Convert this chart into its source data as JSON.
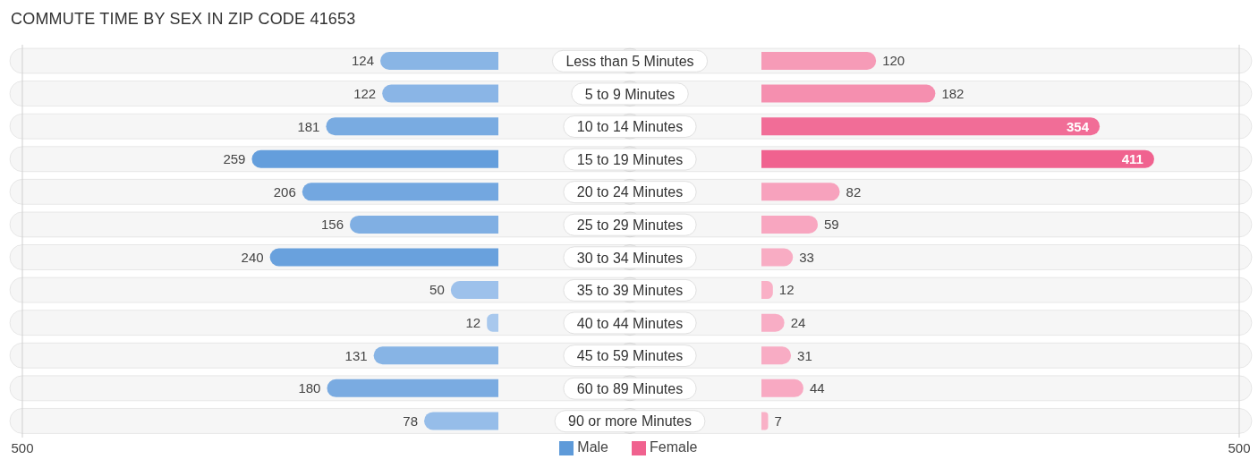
{
  "chart_data": [
    {
      "type": "bar",
      "orientation": "horizontal",
      "title": "COMMUTE TIME BY SEX IN ZIP CODE 41653",
      "categories": [
        "Less than 5 Minutes",
        "5 to 9 Minutes",
        "10 to 14 Minutes",
        "15 to 19 Minutes",
        "20 to 24 Minutes",
        "25 to 29 Minutes",
        "30 to 34 Minutes",
        "35 to 39 Minutes",
        "40 to 44 Minutes",
        "45 to 59 Minutes",
        "60 to 89 Minutes",
        "90 or more Minutes"
      ],
      "series": [
        {
          "name": "Male",
          "color": "#5e9ad9",
          "colors": [
            "#89b5e5",
            "#8ab5e6",
            "#79abe1",
            "#649edc",
            "#73a7e0",
            "#80afe3",
            "#69a1dd",
            "#9dc1eb",
            "#a8c8ed",
            "#87b4e5",
            "#7aabe1",
            "#96bde9"
          ],
          "values": [
            124,
            122,
            181,
            259,
            206,
            156,
            240,
            50,
            12,
            131,
            180,
            78
          ]
        }
      ],
      "data_labels": true,
      "xlim": [
        500,
        0
      ],
      "xticks": [
        500
      ],
      "legend": "bottom right"
    },
    {
      "type": "bar",
      "orientation": "horizontal",
      "categories": [
        null,
        null,
        null,
        null,
        null,
        null,
        null,
        null,
        null,
        null,
        null,
        null
      ],
      "series": [
        {
          "name": "Female",
          "color": "#f0628f",
          "colors": [
            "#f69bb7",
            "#f58faf",
            "#f16d97",
            "#f0628f",
            "#f7a2bd",
            "#f8a6c0",
            "#f8acc3",
            "#f9b0c6",
            "#f8adc5",
            "#f8acc4",
            "#f8a9c2",
            "#f9b1c7"
          ],
          "values": [
            120,
            182,
            354,
            411,
            82,
            59,
            33,
            12,
            24,
            31,
            44,
            7
          ]
        }
      ],
      "data_labels": true,
      "xlim": [
        0,
        500
      ],
      "xticks": [
        500
      ],
      "legend": "bottom left"
    }
  ]
}
